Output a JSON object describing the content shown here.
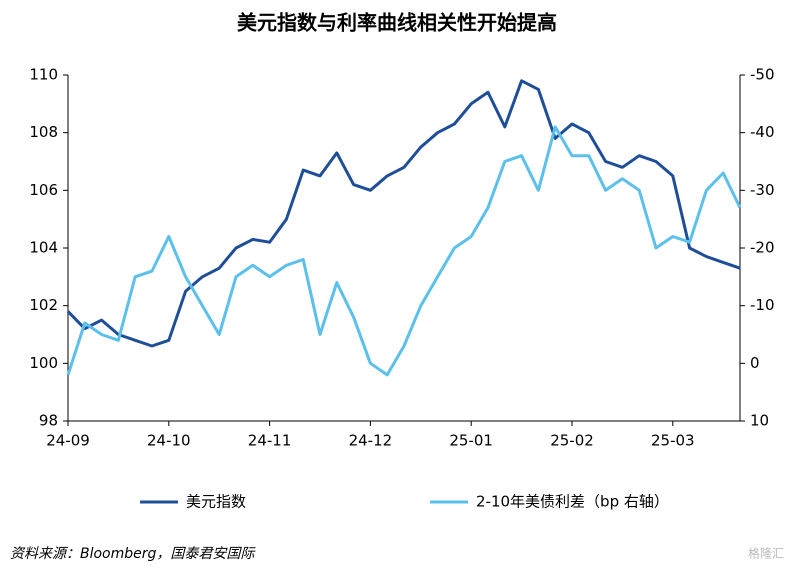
{
  "chart_data": {
    "type": "line",
    "title": "美元指数与利率曲线相关性开始提高",
    "categories": [
      "24-09",
      null,
      null,
      null,
      null,
      null,
      "24-10",
      null,
      null,
      null,
      null,
      null,
      "24-11",
      null,
      null,
      null,
      null,
      null,
      "24-12",
      null,
      null,
      null,
      null,
      null,
      "25-01",
      null,
      null,
      null,
      null,
      null,
      "25-02",
      null,
      null,
      null,
      null,
      null,
      "25-03",
      null,
      null,
      null,
      null
    ],
    "series": [
      {
        "name": "美元指数",
        "color": "#1f4e99",
        "values": [
          101.8,
          101.2,
          101.5,
          101.0,
          100.8,
          100.6,
          100.8,
          102.5,
          103.0,
          103.3,
          104.0,
          104.3,
          104.2,
          105.0,
          106.7,
          106.5,
          107.3,
          106.2,
          106.0,
          106.5,
          106.8,
          107.5,
          108.0,
          108.3,
          109.0,
          109.4,
          108.2,
          109.8,
          109.5,
          107.8,
          108.3,
          108.0,
          107.0,
          106.8,
          107.2,
          107.0,
          106.5,
          104.0,
          103.7,
          103.5,
          103.3
        ]
      },
      {
        "name": "2-10年美债利差（bp 右轴）",
        "color": "#5bc0eb",
        "axis": "y2",
        "values": [
          2,
          -7,
          -5,
          -4,
          -15,
          -16,
          -22,
          -15,
          -10,
          -5,
          -15,
          -17,
          -15,
          -17,
          -18,
          -5,
          -14,
          -8,
          0,
          2,
          -3,
          -10,
          -15,
          -20,
          -22,
          -27,
          -35,
          -36,
          -30,
          -41,
          -36,
          -36,
          -30,
          -32,
          -30,
          -20,
          -22,
          -21,
          -30,
          -33,
          -27
        ]
      }
    ],
    "ylim": [
      98,
      110
    ],
    "yticks": [
      98,
      100,
      102,
      104,
      106,
      108,
      110
    ],
    "y2lim": [
      10,
      -50
    ],
    "y2ticks": [
      10,
      0,
      -10,
      -20,
      -30,
      -40,
      -50
    ],
    "source": "资料来源：Bloomberg，国泰君安国际",
    "watermark": "格隆汇"
  }
}
